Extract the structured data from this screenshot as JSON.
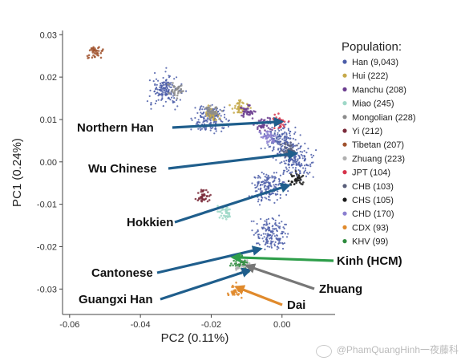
{
  "chart_data": {
    "type": "scatter",
    "xlabel": "PC2 (0.11%)",
    "ylabel": "PC1 (0.24%)",
    "xlim": [
      -0.062,
      0.015
    ],
    "ylim": [
      -0.036,
      0.031
    ],
    "xticks": [
      -0.06,
      -0.04,
      -0.02,
      0.0
    ],
    "xtick_labels": [
      "-0.06",
      "-0.04",
      "-0.02",
      "0.00"
    ],
    "yticks": [
      0.03,
      0.02,
      0.01,
      0.0,
      -0.01,
      -0.02,
      -0.03
    ],
    "ytick_labels": [
      "0.03",
      "0.02",
      "0.01",
      "0.00",
      "-0.01",
      "-0.02",
      "-0.03"
    ],
    "grid": false,
    "legend_title": "Population:",
    "legend_placement": "right",
    "series": [
      {
        "name": "Han (9,043)",
        "color": "#4b5da8",
        "centers": [
          [
            0.0,
            0.005
          ],
          [
            0.004,
            0.0
          ],
          [
            -0.004,
            -0.006
          ],
          [
            -0.02,
            0.01
          ],
          [
            -0.033,
            0.017
          ],
          [
            -0.003,
            -0.017
          ]
        ]
      },
      {
        "name": "Hui (222)",
        "color": "#c6a94a",
        "centers": [
          [
            -0.012,
            0.013
          ],
          [
            -0.02,
            0.011
          ]
        ]
      },
      {
        "name": "Manchu (208)",
        "color": "#6b3d8f",
        "centers": [
          [
            -0.005,
            0.009
          ],
          [
            -0.01,
            0.012
          ]
        ]
      },
      {
        "name": "Miao (245)",
        "color": "#9fd8c8",
        "centers": [
          [
            -0.016,
            -0.012
          ]
        ]
      },
      {
        "name": "Mongolian (228)",
        "color": "#8c8c8c",
        "centers": [
          [
            -0.03,
            0.017
          ],
          [
            -0.02,
            0.012
          ]
        ]
      },
      {
        "name": "Yi (212)",
        "color": "#7a2a3a",
        "centers": [
          [
            -0.022,
            -0.008
          ]
        ]
      },
      {
        "name": "Tibetan (207)",
        "color": "#a0522d",
        "centers": [
          [
            -0.053,
            0.026
          ]
        ]
      },
      {
        "name": "Zhuang (223)",
        "color": "#b0b0b0",
        "centers": [
          [
            -0.011,
            -0.025
          ]
        ]
      },
      {
        "name": "JPT (104)",
        "color": "#d6334a",
        "centers": [
          [
            -0.001,
            0.0095
          ]
        ]
      },
      {
        "name": "CHB (103)",
        "color": "#5a5f7a",
        "centers": [
          [
            0.002,
            0.003
          ]
        ]
      },
      {
        "name": "CHS (105)",
        "color": "#1a1a1a",
        "centers": [
          [
            0.004,
            -0.004
          ]
        ]
      },
      {
        "name": "CHD (170)",
        "color": "#8b7fd0",
        "centers": [
          [
            -0.004,
            0.006
          ]
        ]
      },
      {
        "name": "CDX (93)",
        "color": "#e08a2c",
        "centers": [
          [
            -0.013,
            -0.0305
          ]
        ]
      },
      {
        "name": "KHV (99)",
        "color": "#2e8b3e",
        "centers": [
          [
            -0.012,
            -0.0235
          ]
        ]
      }
    ],
    "annotations": [
      {
        "text": "Northern Han",
        "color": "#1f5e8c",
        "target": [
          0.0,
          0.0095
        ]
      },
      {
        "text": "Wu Chinese",
        "color": "#1f5e8c",
        "target": [
          0.004,
          0.002
        ]
      },
      {
        "text": "Hokkien",
        "color": "#1f5e8c",
        "target": [
          0.002,
          -0.0055
        ]
      },
      {
        "text": "Cantonese",
        "color": "#1f5e8c",
        "target": [
          -0.006,
          -0.0205
        ]
      },
      {
        "text": "Guangxi Han",
        "color": "#1f5e8c",
        "target": [
          -0.009,
          -0.0255
        ]
      },
      {
        "text": "Kinh (HCM)",
        "color": "#2e9e4a",
        "target": [
          -0.014,
          -0.0225
        ]
      },
      {
        "text": "Zhuang",
        "color": "#777777",
        "target": [
          -0.01,
          -0.0245
        ]
      },
      {
        "text": "Dai",
        "color": "#e08a2c",
        "target": [
          -0.013,
          -0.0295
        ]
      }
    ]
  },
  "watermark": "@PhamQuangHinh一夜藤科"
}
